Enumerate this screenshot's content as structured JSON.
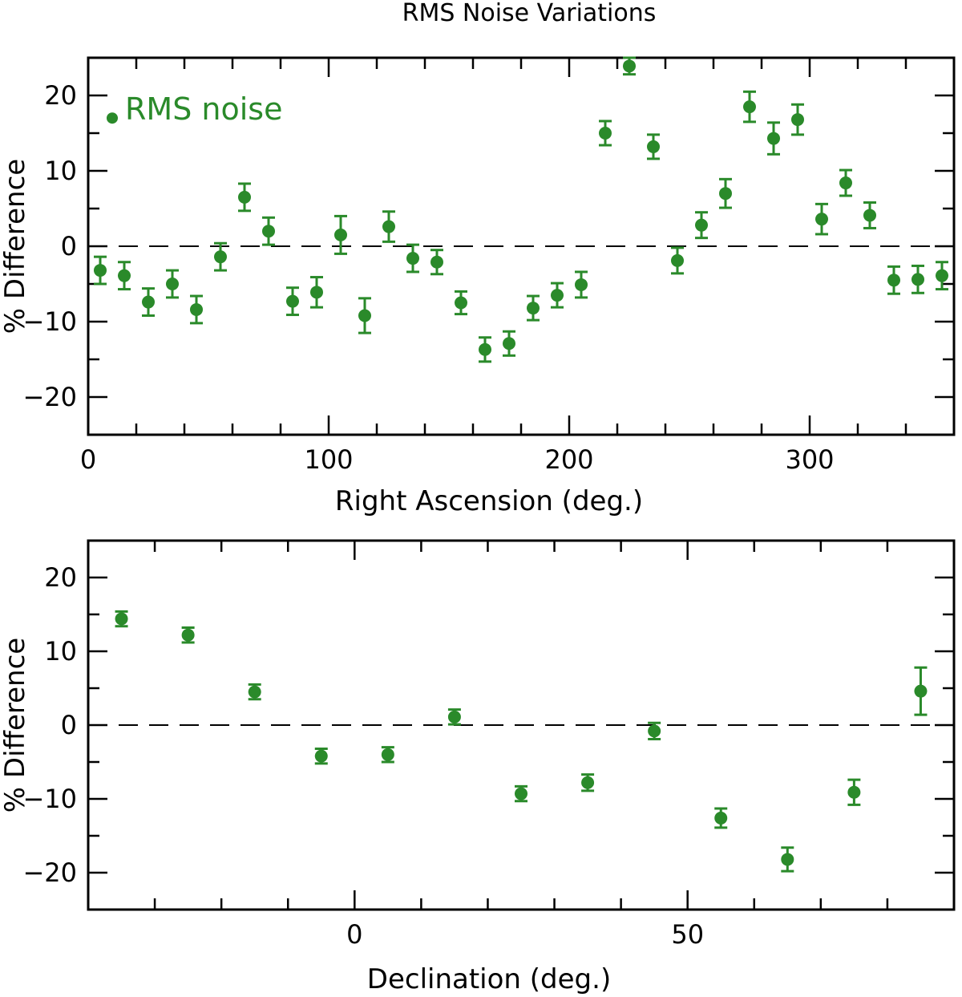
{
  "chart_data": [
    {
      "type": "scatter",
      "title": "RMS Noise Variations",
      "xlabel": "Right Ascension (deg.)",
      "ylabel": "% Difference",
      "xlim": [
        0,
        360
      ],
      "ylim": [
        -25,
        25
      ],
      "x_ticks": [
        0,
        100,
        200,
        300
      ],
      "y_ticks": [
        -20,
        -10,
        0,
        10,
        20
      ],
      "y_tick_labels": [
        "−20",
        "−10",
        "0",
        "10",
        "20"
      ],
      "reference_line": 0,
      "color": "#2a8a2a",
      "legend": {
        "label": "RMS noise",
        "x": 10,
        "y": 17
      },
      "series": [
        {
          "name": "RMS noise",
          "x": [
            5,
            15,
            25,
            35,
            45,
            55,
            65,
            75,
            85,
            95,
            105,
            115,
            125,
            135,
            145,
            155,
            165,
            175,
            185,
            195,
            205,
            215,
            225,
            235,
            245,
            255,
            265,
            275,
            285,
            295,
            305,
            315,
            325,
            335,
            345,
            355
          ],
          "y": [
            -3.2,
            -3.9,
            -7.4,
            -5.0,
            -8.4,
            -1.4,
            6.5,
            2.0,
            -7.3,
            -6.1,
            1.5,
            -9.2,
            2.6,
            -1.6,
            -2.1,
            -7.5,
            -13.7,
            -12.9,
            -8.2,
            -6.5,
            -5.1,
            15.0,
            23.9,
            13.2,
            -1.9,
            2.8,
            7.0,
            18.5,
            14.3,
            16.8,
            3.6,
            8.4,
            4.1,
            -4.5,
            -4.4,
            -3.9
          ],
          "err": [
            1.8,
            1.8,
            1.8,
            1.8,
            1.8,
            1.8,
            1.8,
            1.8,
            1.8,
            2.0,
            2.5,
            2.3,
            2.0,
            1.8,
            1.6,
            1.5,
            1.6,
            1.6,
            1.6,
            1.6,
            1.7,
            1.6,
            1.1,
            1.6,
            1.7,
            1.7,
            1.9,
            2.0,
            2.1,
            2.0,
            2.0,
            1.7,
            1.7,
            1.8,
            1.8,
            1.8
          ]
        }
      ]
    },
    {
      "type": "scatter",
      "title": "",
      "xlabel": "Declination (deg.)",
      "ylabel": "% Difference",
      "xlim": [
        -40,
        90
      ],
      "ylim": [
        -25,
        25
      ],
      "x_ticks": [
        0,
        50
      ],
      "y_ticks": [
        -20,
        -10,
        0,
        10,
        20
      ],
      "y_tick_labels": [
        "−20",
        "−10",
        "0",
        "10",
        "20"
      ],
      "reference_line": 0,
      "color": "#2a8a2a",
      "series": [
        {
          "name": "RMS noise",
          "x": [
            -35,
            -25,
            -15,
            -5,
            5,
            15,
            25,
            35,
            45,
            55,
            65,
            75,
            85
          ],
          "y": [
            14.4,
            12.2,
            4.5,
            -4.2,
            -4.0,
            1.1,
            -9.3,
            -7.8,
            -0.8,
            -12.6,
            -18.2,
            -9.1,
            4.6
          ],
          "err": [
            1.0,
            1.0,
            1.0,
            1.0,
            1.0,
            1.0,
            1.0,
            1.1,
            1.1,
            1.3,
            1.6,
            1.7,
            3.2
          ]
        }
      ]
    }
  ]
}
